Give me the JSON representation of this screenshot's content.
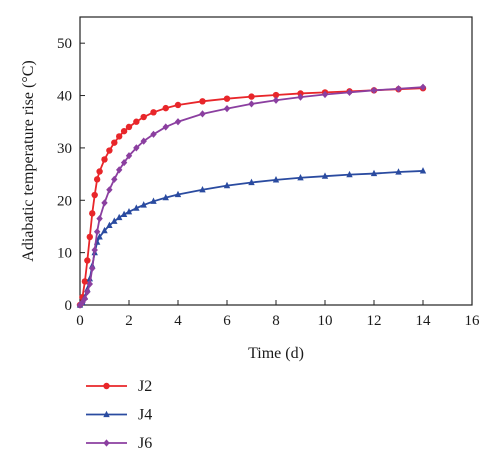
{
  "chart_data": {
    "type": "line",
    "xlabel": "Time (d)",
    "ylabel": "Adiabatic temperature rise (°C)",
    "xlim": [
      0,
      16
    ],
    "ylim": [
      0,
      55
    ],
    "xticks": [
      0,
      2,
      4,
      6,
      8,
      10,
      12,
      14,
      16
    ],
    "yticks": [
      0,
      10,
      20,
      30,
      40,
      50
    ],
    "grid": false,
    "legend_position": "bottom-left",
    "series": [
      {
        "name": "J2",
        "color": "#e8262a",
        "marker": "circle",
        "x": [
          0,
          0.1,
          0.2,
          0.3,
          0.4,
          0.5,
          0.6,
          0.7,
          0.8,
          1.0,
          1.2,
          1.4,
          1.6,
          1.8,
          2.0,
          2.3,
          2.6,
          3.0,
          3.5,
          4.0,
          5,
          6,
          7,
          8,
          9,
          10,
          11,
          12,
          13,
          14
        ],
        "y": [
          0,
          1.5,
          4.5,
          8.5,
          13.0,
          17.5,
          21.0,
          24.0,
          25.5,
          27.8,
          29.5,
          31.0,
          32.2,
          33.2,
          34.0,
          35.0,
          35.9,
          36.8,
          37.6,
          38.2,
          38.9,
          39.4,
          39.8,
          40.1,
          40.4,
          40.6,
          40.8,
          41.0,
          41.2,
          41.4
        ]
      },
      {
        "name": "J4",
        "color": "#2a4ba0",
        "marker": "triangle",
        "x": [
          0,
          0.1,
          0.2,
          0.3,
          0.4,
          0.5,
          0.6,
          0.7,
          0.8,
          1.0,
          1.2,
          1.4,
          1.6,
          1.8,
          2.0,
          2.3,
          2.6,
          3.0,
          3.5,
          4.0,
          5,
          6,
          7,
          8,
          9,
          10,
          11,
          12,
          13,
          14
        ],
        "y": [
          0,
          0.5,
          1.5,
          3.0,
          5.0,
          7.5,
          10.0,
          12.0,
          13.0,
          14.2,
          15.2,
          16.0,
          16.7,
          17.3,
          17.8,
          18.5,
          19.1,
          19.8,
          20.5,
          21.1,
          22.0,
          22.8,
          23.4,
          23.9,
          24.3,
          24.6,
          24.9,
          25.1,
          25.4,
          25.6
        ]
      },
      {
        "name": "J6",
        "color": "#8b3fa0",
        "marker": "diamond",
        "x": [
          0,
          0.1,
          0.2,
          0.3,
          0.4,
          0.5,
          0.6,
          0.7,
          0.8,
          1.0,
          1.2,
          1.4,
          1.6,
          1.8,
          2.0,
          2.3,
          2.6,
          3.0,
          3.5,
          4.0,
          5,
          6,
          7,
          8,
          9,
          10,
          11,
          12,
          13,
          14
        ],
        "y": [
          0,
          0.5,
          1.2,
          2.5,
          4.0,
          7.0,
          10.5,
          14.0,
          16.5,
          19.5,
          22.0,
          24.0,
          25.8,
          27.2,
          28.5,
          30.0,
          31.3,
          32.6,
          34.0,
          35.0,
          36.5,
          37.5,
          38.4,
          39.1,
          39.7,
          40.2,
          40.6,
          41.0,
          41.3,
          41.6
        ]
      }
    ]
  }
}
